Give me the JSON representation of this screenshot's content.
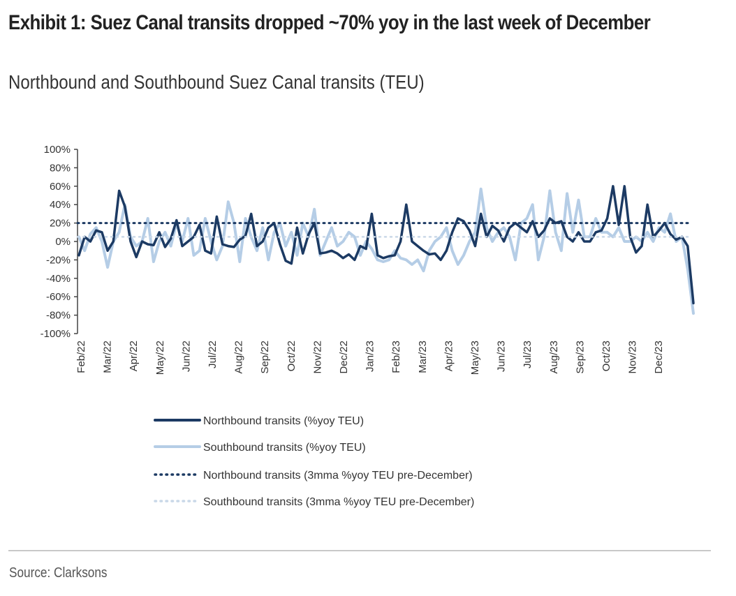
{
  "header": {
    "title": "Exhibit 1: Suez Canal transits dropped ~70% yoy in the last week of December",
    "subtitle": "Northbound and Southbound Suez Canal transits (TEU)"
  },
  "footer": {
    "source": "Source: Clarksons"
  },
  "colors": {
    "northbound": "#1c3a63",
    "southbound": "#b5cde6",
    "northbound_avg": "#1c3a63",
    "southbound_avg": "#c9d8e8",
    "axis": "#444444"
  },
  "chart_data": {
    "type": "line",
    "title": "Northbound and Southbound Suez Canal transits (TEU)",
    "xlabel": "",
    "ylabel": "",
    "ylim": [
      -100,
      100
    ],
    "yticks": [
      "100%",
      "80%",
      "60%",
      "40%",
      "20%",
      "0%",
      "-20%",
      "-40%",
      "-60%",
      "-80%",
      "-100%"
    ],
    "ytick_values": [
      100,
      80,
      60,
      40,
      20,
      0,
      -20,
      -40,
      -60,
      -80,
      -100
    ],
    "x_tick_labels": [
      "Feb/22",
      "Mar/22",
      "Apr/22",
      "May/22",
      "Jun/22",
      "Jul/22",
      "Aug/22",
      "Sep/22",
      "Oct/22",
      "Nov/22",
      "Dec/22",
      "Jan/23",
      "Feb/23",
      "Mar/23",
      "Apr/23",
      "May/23",
      "Jun/23",
      "Jul/23",
      "Aug/23",
      "Sep/23",
      "Oct/23",
      "Nov/23",
      "Dec/23"
    ],
    "x_frequency": "weekly",
    "grid": false,
    "legend_position": "bottom",
    "series": [
      {
        "name": "Northbound transits (%yoy TEU)",
        "style": "solid-dark",
        "values": [
          -15,
          5,
          0,
          12,
          10,
          -10,
          0,
          55,
          38,
          0,
          -17,
          0,
          -3,
          -4,
          10,
          -6,
          3,
          23,
          -5,
          0,
          5,
          18,
          -10,
          -13,
          27,
          -3,
          -5,
          -6,
          2,
          6,
          30,
          -5,
          0,
          15,
          20,
          -3,
          -21,
          -24,
          15,
          -13,
          8,
          20,
          -13,
          -12,
          -10,
          -13,
          -18,
          -14,
          -20,
          -5,
          -8,
          30,
          -15,
          -18,
          -16,
          -15,
          0,
          40,
          0,
          -5,
          -10,
          -14,
          -13,
          -20,
          -10,
          10,
          25,
          22,
          12,
          -5,
          30,
          5,
          17,
          12,
          0,
          15,
          20,
          15,
          10,
          22,
          5,
          12,
          25,
          20,
          22,
          5,
          0,
          10,
          0,
          0,
          10,
          12,
          25,
          60,
          18,
          60,
          5,
          -12,
          -5,
          40,
          5,
          12,
          20,
          8,
          2,
          5,
          -5,
          -67
        ]
      },
      {
        "name": "Southbound transits (%yoy TEU)",
        "style": "solid-light",
        "values": [
          5,
          -10,
          8,
          15,
          0,
          -28,
          0,
          10,
          40,
          5,
          -5,
          0,
          25,
          -22,
          0,
          10,
          -5,
          20,
          0,
          25,
          -15,
          -10,
          25,
          0,
          -20,
          -5,
          43,
          20,
          -22,
          25,
          5,
          -10,
          15,
          -20,
          10,
          20,
          -5,
          10,
          -15,
          20,
          5,
          35,
          -15,
          0,
          15,
          -5,
          0,
          10,
          5,
          -15,
          0,
          -8,
          -20,
          -22,
          -20,
          -10,
          -18,
          -20,
          -25,
          -20,
          -32,
          -10,
          0,
          5,
          15,
          -10,
          -25,
          -15,
          0,
          10,
          57,
          15,
          0,
          10,
          15,
          5,
          -20,
          20,
          25,
          40,
          -20,
          5,
          55,
          10,
          -10,
          52,
          10,
          45,
          5,
          5,
          25,
          10,
          10,
          5,
          15,
          0,
          0,
          5,
          0,
          10,
          0,
          15,
          10,
          30,
          0,
          5,
          -30,
          -78
        ]
      },
      {
        "name": "Northbound transits (3mma %yoy TEU pre-December)",
        "style": "dotted-dark",
        "constant": 20
      },
      {
        "name": "Southbound transits (3mma %yoy TEU pre-December)",
        "style": "dotted-light",
        "constant": 5
      }
    ]
  }
}
